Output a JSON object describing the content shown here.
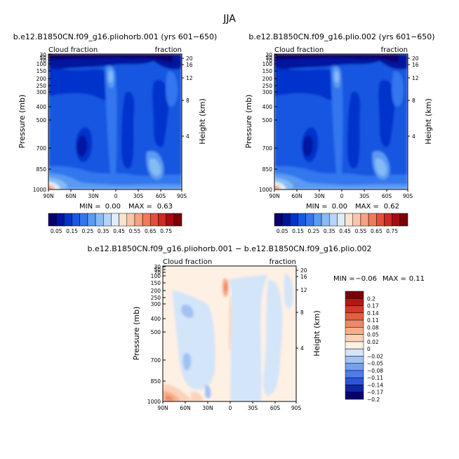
{
  "season_title": "JJA",
  "colors": {
    "cf_levels": [
      "#08006b",
      "#00139e",
      "#0033cc",
      "#1957e0",
      "#3377ee",
      "#5b9af2",
      "#86bbf5",
      "#b4d5f8",
      "#ddeefb",
      "#fde3cf",
      "#fbc5aa",
      "#f6a281",
      "#ee7a5d",
      "#e2503e",
      "#cc2a24",
      "#a50d13",
      "#7a0008"
    ],
    "diff_levels": [
      "#08006b",
      "#1026a8",
      "#2d55d6",
      "#4d7de8",
      "#759ff0",
      "#a2c2f4",
      "#d3e5f8",
      "#fff0e4",
      "#fbd2b8",
      "#f6ae8a",
      "#ee8866",
      "#e26040",
      "#d03a26",
      "#b01915",
      "#7a0008"
    ]
  },
  "panels": [
    {
      "title": "b.e12.B1850CN.f09_g16.pliohorb.001 (yrs 601−650)",
      "left_label": "Cloud fraction",
      "right_label": "fraction",
      "min_label": "MIN =",
      "min_value": "0.00",
      "max_label": "MAX =",
      "max_value": "0.63"
    },
    {
      "title": "b.e12.B1850CN.f09_g16.plio.002 (yrs 601−650)",
      "left_label": "Cloud fraction",
      "right_label": "fraction",
      "min_label": "MIN =",
      "min_value": "0.00",
      "max_label": "MAX =",
      "max_value": "0.62"
    },
    {
      "title": "b.e12.B1850CN.f09_g16.pliohorb.001 − b.e12.B1850CN.f09_g16.plio.002",
      "left_label": "Cloud fraction",
      "right_label": "fraction",
      "min_label": "MIN =",
      "min_value": "−0.06",
      "max_label": "MAX =",
      "max_value": "0.11"
    }
  ],
  "chart_data": [
    {
      "type": "heatmap",
      "title": "b.e12.B1850CN.f09_g16.pliohorb.001 (yrs 601−650)",
      "xlabel": "",
      "ylabel": "Pressure (mb)",
      "y2label": "Height (km)",
      "x_ticks": [
        "90N",
        "60N",
        "30N",
        "0",
        "30S",
        "60S",
        "90S"
      ],
      "y_ticks": [
        "1000",
        "850",
        "700",
        "500",
        "400",
        "300",
        "250",
        "200",
        "150",
        "100",
        "70",
        "50",
        "30"
      ],
      "y2_ticks": [
        "4",
        "8",
        "12",
        "16",
        "20"
      ],
      "colorbar_labels": [
        "0.05",
        "0.15",
        "0.25",
        "0.35",
        "0.45",
        "0.55",
        "0.65",
        "0.75"
      ],
      "min": 0.0,
      "max": 0.63
    },
    {
      "type": "heatmap",
      "title": "b.e12.B1850CN.f09_g16.plio.002 (yrs 601−650)",
      "xlabel": "",
      "ylabel": "Pressure (mb)",
      "y2label": "Height (km)",
      "x_ticks": [
        "90N",
        "60N",
        "30N",
        "0",
        "30S",
        "60S",
        "90S"
      ],
      "y_ticks": [
        "1000",
        "850",
        "700",
        "500",
        "400",
        "300",
        "250",
        "200",
        "150",
        "100",
        "70",
        "50",
        "30"
      ],
      "y2_ticks": [
        "4",
        "8",
        "12",
        "16",
        "20"
      ],
      "colorbar_labels": [
        "0.05",
        "0.15",
        "0.25",
        "0.35",
        "0.45",
        "0.55",
        "0.65",
        "0.75"
      ],
      "min": 0.0,
      "max": 0.62
    },
    {
      "type": "heatmap",
      "title": "b.e12.B1850CN.f09_g16.pliohorb.001 − b.e12.B1850CN.f09_g16.plio.002",
      "xlabel": "",
      "ylabel": "Pressure (mb)",
      "y2label": "Height (km)",
      "x_ticks": [
        "90N",
        "60N",
        "30N",
        "0",
        "30S",
        "60S",
        "90S"
      ],
      "y_ticks": [
        "1000",
        "850",
        "700",
        "500",
        "400",
        "300",
        "250",
        "200",
        "150",
        "100",
        "70",
        "50",
        "30"
      ],
      "y2_ticks": [
        "4",
        "8",
        "12",
        "16",
        "20"
      ],
      "colorbar_labels": [
        "0.2",
        "0.17",
        "0.14",
        "0.11",
        "0.08",
        "0.05",
        "0.02",
        "0",
        "−0.02",
        "−0.05",
        "−0.08",
        "−0.11",
        "−0.14",
        "−0.17",
        "−0.2"
      ],
      "min": -0.06,
      "max": 0.11
    }
  ]
}
